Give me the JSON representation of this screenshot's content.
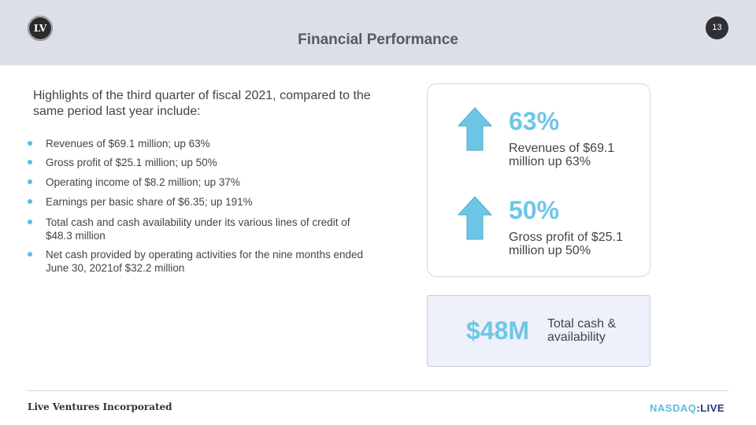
{
  "header": {
    "logo_text": "LV",
    "title": "Financial Performance",
    "page_number": "13"
  },
  "intro": "Highlights of the third quarter of fiscal 2021, compared to the same period last year include:",
  "bullets": [
    "Revenues of $69.1 million; up 63%",
    "Gross profit of $25.1 million; up 50%",
    "Operating income of $8.2 million; up 37%",
    "Earnings per basic share of $6.35; up 191%",
    "Total cash and cash availability under its various lines of credit of $48.3 million",
    "Net cash provided by operating activities for the nine months ended June 30, 2021of $32.2 million"
  ],
  "stats": [
    {
      "value": "63%",
      "description": "Revenues of $69.1 million up 63%",
      "icon": "up-arrow-icon"
    },
    {
      "value": "50%",
      "description": "Gross profit of $25.1 million up 50%",
      "icon": "up-arrow-icon"
    }
  ],
  "cash": {
    "value": "$48M",
    "label": "Total cash & availability"
  },
  "footer": {
    "company": "Live Ventures Incorporated",
    "exchange": "NASDAQ",
    "separator": ":",
    "ticker": "LIVE"
  },
  "colors": {
    "accent": "#6ec6e6",
    "header_bg": "#dcdee8",
    "bullet_dot": "#5bbde0",
    "nasdaq_blue": "#1f3b73"
  }
}
